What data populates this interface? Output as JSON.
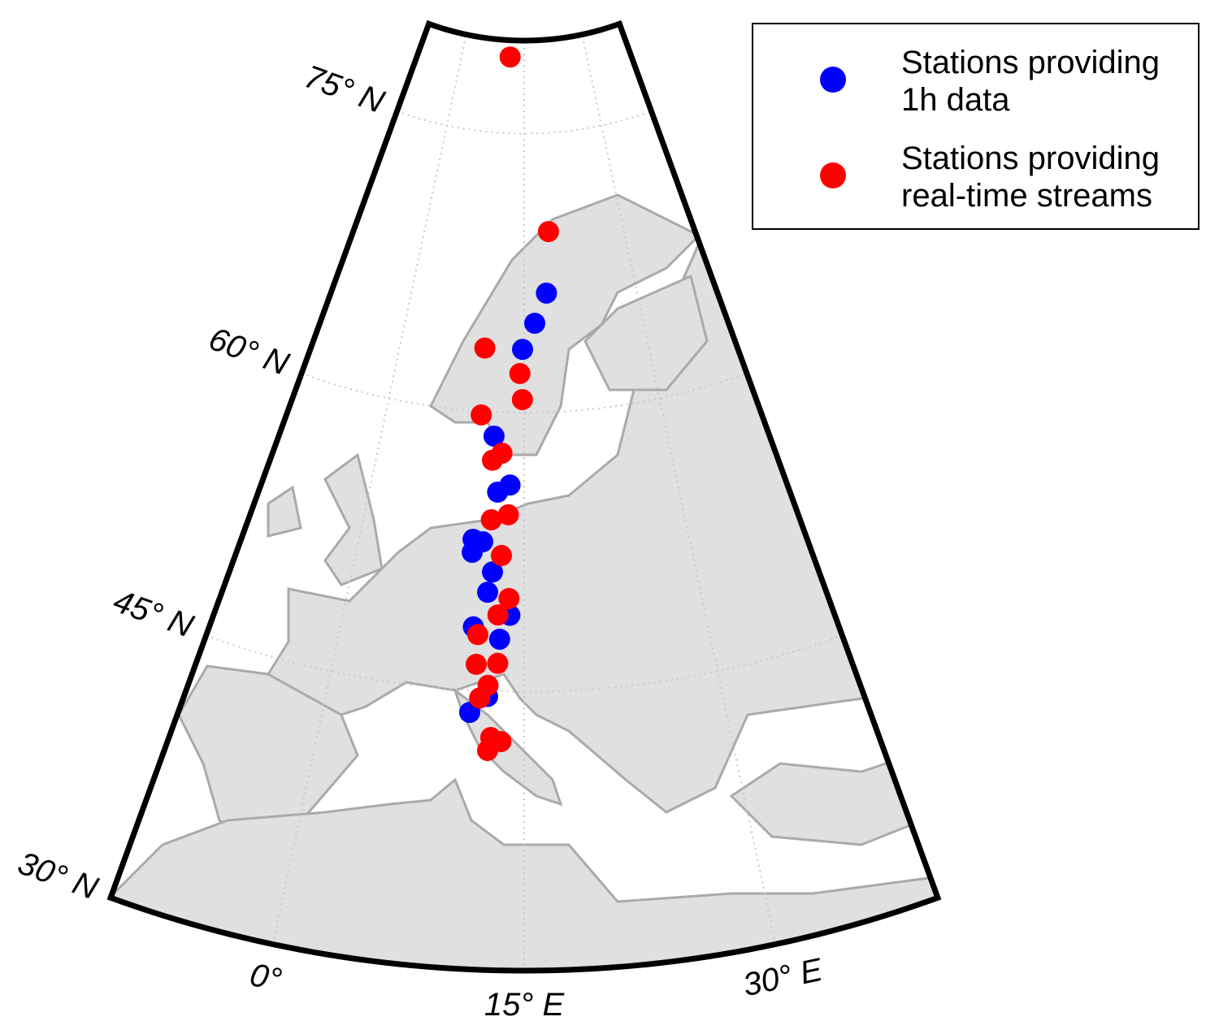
{
  "chart_data": {
    "type": "map",
    "lonlim": [
      -10,
      40
    ],
    "latlim": [
      30,
      80
    ],
    "lat_ticks": [
      {
        "value": 30,
        "label": "30° N"
      },
      {
        "value": 45,
        "label": "45° N"
      },
      {
        "value": 60,
        "label": "60° N"
      },
      {
        "value": 75,
        "label": "75° N"
      }
    ],
    "lon_ticks": [
      {
        "value": 0,
        "label": "0°"
      },
      {
        "value": 15,
        "label": "15° E"
      },
      {
        "value": 30,
        "label": "30° E"
      }
    ],
    "grid": true,
    "series": [
      {
        "name": "Stations providing 1h data",
        "color": "#0000ff",
        "lon": [
          18.0,
          16.35,
          14.8,
          11.8,
          12.4,
          13.6,
          10.3,
          11.2,
          10.3,
          12.2,
          11.85,
          13.8,
          10.8,
          13.0,
          12.2,
          10.9
        ],
        "lat": [
          66.4,
          64.8,
          63.4,
          58.7,
          55.7,
          56.1,
          53.1,
          53.0,
          52.4,
          51.4,
          50.3,
          49.1,
          48.4,
          47.8,
          44.7,
          43.8
        ]
      },
      {
        "name": "Stations providing real-time streams",
        "color": "#ff0000",
        "lon": [
          11.6,
          18.7,
          10.2,
          14.5,
          14.8,
          10.3,
          12.7,
          11.75,
          11.9,
          13.5,
          12.95,
          13.7,
          12.8,
          11.2,
          11.2,
          12.9,
          12.2,
          11.6,
          12.55,
          13.3,
          12.35
        ],
        "lat": [
          79.1,
          69.7,
          63.4,
          62.1,
          60.7,
          59.8,
          57.8,
          57.4,
          54.2,
          54.5,
          52.3,
          50.0,
          49.1,
          48.0,
          46.4,
          46.5,
          45.3,
          44.6,
          42.5,
          42.3,
          41.8
        ]
      }
    ]
  }
}
